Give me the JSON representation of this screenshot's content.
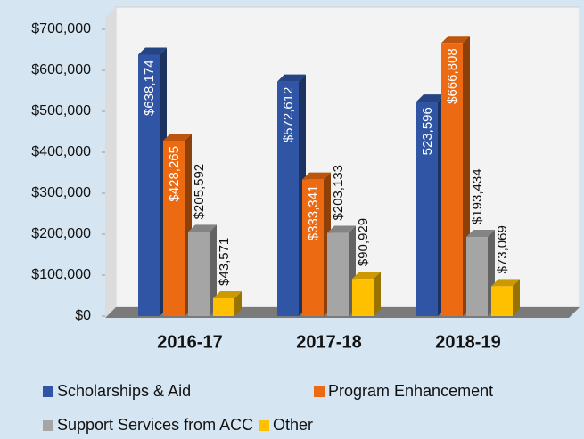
{
  "chart_data": {
    "type": "bar3d",
    "categories": [
      "2016-17",
      "2017-18",
      "2018-19"
    ],
    "series": [
      {
        "name": "Scholarships & Aid",
        "color": "#2f55a4",
        "values": [
          638174,
          572612,
          523596
        ],
        "value_labels": [
          "$638,174",
          "$572,612",
          "523,596"
        ]
      },
      {
        "name": "Program Enhancement",
        "color": "#ec6a12",
        "values": [
          428265,
          333341,
          666808
        ],
        "value_labels": [
          "$428,265",
          "$333,341",
          "$666,808"
        ]
      },
      {
        "name": "Support Services from ACC",
        "color": "#a5a5a5",
        "values": [
          205592,
          203133,
          193434
        ],
        "value_labels": [
          "$205,592",
          "$203,133",
          "$193,434"
        ]
      },
      {
        "name": "Other",
        "color": "#ffc000",
        "values": [
          43571,
          90929,
          73069
        ],
        "value_labels": [
          "$43,571",
          "$90,929",
          "$73,069"
        ]
      }
    ],
    "ylim": [
      0,
      700000
    ],
    "yticks": [
      {
        "value": 0,
        "label": "$0"
      },
      {
        "value": 100000,
        "label": "$100,000"
      },
      {
        "value": 200000,
        "label": "$200,000"
      },
      {
        "value": 300000,
        "label": "$300,000"
      },
      {
        "value": 400000,
        "label": "$400,000"
      },
      {
        "value": 500000,
        "label": "$500,000"
      },
      {
        "value": 600000,
        "label": "$600,000"
      },
      {
        "value": 700000,
        "label": "$700,000"
      }
    ],
    "grid": false
  }
}
